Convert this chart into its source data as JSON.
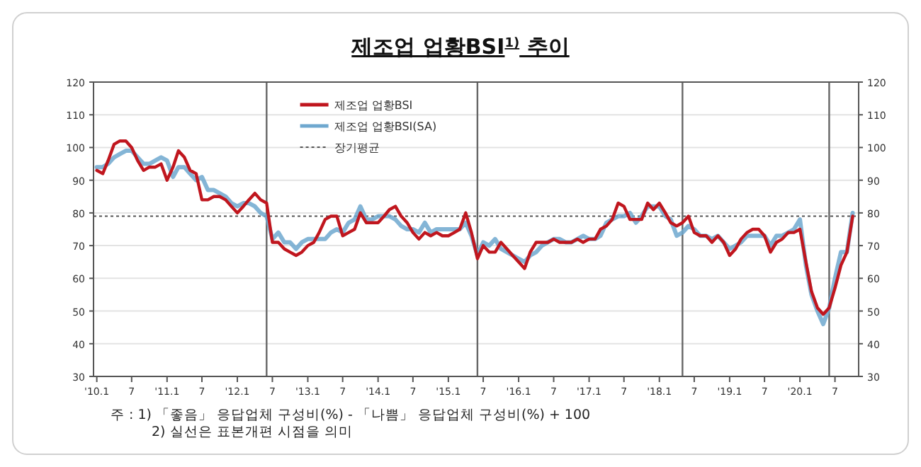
{
  "chart_data": {
    "type": "line",
    "title": "제조업 업황BSI$^{1)}$ 추이",
    "xlim": [
      "2009-12-15",
      "2020-11"
    ],
    "xticks": [
      {
        "value": "2010-01",
        "label": "'10.1"
      },
      {
        "value": "2010-07",
        "label": "7"
      },
      {
        "value": "2011-01",
        "label": "'11.1"
      },
      {
        "value": "2011-07",
        "label": "7"
      },
      {
        "value": "2012-01",
        "label": "'12.1"
      },
      {
        "value": "2012-07",
        "label": "7"
      },
      {
        "value": "2013-01",
        "label": "'13.1"
      },
      {
        "value": "2013-07",
        "label": "7"
      },
      {
        "value": "2014-01",
        "label": "'14.1"
      },
      {
        "value": "2014-07",
        "label": "7"
      },
      {
        "value": "2015-01",
        "label": "'15.1"
      },
      {
        "value": "2015-07",
        "label": "7"
      },
      {
        "value": "2016-01",
        "label": "'16.1"
      },
      {
        "value": "2016-07",
        "label": "7"
      },
      {
        "value": "2017-01",
        "label": "'17.1"
      },
      {
        "value": "2017-07",
        "label": "7"
      },
      {
        "value": "2018-01",
        "label": "'18.1"
      },
      {
        "value": "2018-07",
        "label": "7"
      },
      {
        "value": "2019-01",
        "label": "'19.1"
      },
      {
        "value": "2019-07",
        "label": "7"
      },
      {
        "value": "2020-01",
        "label": "'20.1"
      },
      {
        "value": "2020-07",
        "label": "7"
      }
    ],
    "ylim": [
      30,
      120
    ],
    "yticks": [
      30,
      40,
      50,
      60,
      70,
      80,
      90,
      100,
      110,
      120
    ],
    "y2lim": [
      30,
      120
    ],
    "y2ticks": [
      30,
      40,
      50,
      60,
      70,
      80,
      90,
      100,
      110,
      120
    ],
    "grid": "y",
    "legend": "top left",
    "line_style": "solid",
    "marker": "none",
    "series": [
      {
        "name": "제조업 업황BSI",
        "color": "#c0161e",
        "values": [
          93,
          92,
          96,
          101,
          102,
          102,
          100,
          96,
          93,
          94,
          94,
          95,
          90,
          94,
          99,
          97,
          93,
          92,
          84,
          84,
          85,
          85,
          84,
          82,
          80,
          82,
          84,
          86,
          84,
          83,
          71,
          71,
          69,
          68,
          67,
          68,
          70,
          71,
          74,
          78,
          79,
          79,
          73,
          74,
          75,
          80,
          77,
          77,
          77,
          79,
          81,
          82,
          79,
          77,
          74,
          72,
          74,
          73,
          74,
          73,
          73,
          74,
          75,
          80,
          74,
          66,
          70,
          68,
          68,
          71,
          69,
          67,
          65,
          63,
          68,
          71,
          71,
          71,
          72,
          71,
          71,
          71,
          72,
          71,
          72,
          72,
          75,
          76,
          78,
          83,
          82,
          78,
          78,
          78,
          83,
          81,
          83,
          80,
          77,
          76,
          77,
          79,
          74,
          73,
          73,
          71,
          73,
          71,
          67,
          69,
          72,
          74,
          75,
          75,
          73,
          68,
          71,
          72,
          74,
          74,
          75,
          65,
          56,
          51,
          49,
          51,
          57,
          64,
          68,
          79
        ]
      },
      {
        "name": "제조업 업황BSI(SA)",
        "color": "#6fa8cf",
        "values": [
          94,
          94,
          95,
          97,
          98,
          99,
          99,
          97,
          95,
          95,
          96,
          97,
          96,
          91,
          94,
          94,
          92,
          90,
          91,
          87,
          87,
          86,
          85,
          83,
          82,
          83,
          83,
          82,
          80,
          79,
          72,
          74,
          71,
          71,
          69,
          71,
          72,
          72,
          72,
          72,
          74,
          75,
          74,
          77,
          78,
          82,
          78,
          78,
          79,
          79,
          79,
          78,
          76,
          75,
          75,
          74,
          77,
          74,
          75,
          75,
          75,
          75,
          75,
          77,
          73,
          67,
          71,
          70,
          72,
          69,
          68,
          67,
          66,
          65,
          67,
          68,
          70,
          71,
          72,
          72,
          71,
          71,
          72,
          73,
          72,
          72,
          73,
          77,
          78,
          79,
          79,
          80,
          77,
          79,
          82,
          82,
          82,
          79,
          78,
          73,
          74,
          76,
          75,
          73,
          73,
          72,
          73,
          71,
          69,
          70,
          71,
          73,
          73,
          73,
          73,
          70,
          73,
          73,
          74,
          75,
          78,
          64,
          55,
          50,
          46,
          51,
          60,
          68,
          68,
          80
        ]
      }
    ],
    "x": [
      "2010-01",
      "2010-02",
      "2010-03",
      "2010-04",
      "2010-05",
      "2010-06",
      "2010-07",
      "2010-08",
      "2010-09",
      "2010-10",
      "2010-11",
      "2010-12",
      "2011-01",
      "2011-02",
      "2011-03",
      "2011-04",
      "2011-05",
      "2011-06",
      "2011-07",
      "2011-08",
      "2011-09",
      "2011-10",
      "2011-11",
      "2011-12",
      "2012-01",
      "2012-02",
      "2012-03",
      "2012-04",
      "2012-05",
      "2012-06",
      "2012-07",
      "2012-08",
      "2012-09",
      "2012-10",
      "2012-11",
      "2012-12",
      "2013-01",
      "2013-02",
      "2013-03",
      "2013-04",
      "2013-05",
      "2013-06",
      "2013-07",
      "2013-08",
      "2013-09",
      "2013-10",
      "2013-11",
      "2013-12",
      "2014-01",
      "2014-02",
      "2014-03",
      "2014-04",
      "2014-05",
      "2014-06",
      "2014-07",
      "2014-08",
      "2014-09",
      "2014-10",
      "2014-11",
      "2014-12",
      "2015-01",
      "2015-02",
      "2015-03",
      "2015-04",
      "2015-05",
      "2015-06",
      "2015-07",
      "2015-08",
      "2015-09",
      "2015-10",
      "2015-11",
      "2015-12",
      "2016-01",
      "2016-02",
      "2016-03",
      "2016-04",
      "2016-05",
      "2016-06",
      "2016-07",
      "2016-08",
      "2016-09",
      "2016-10",
      "2016-11",
      "2016-12",
      "2017-01",
      "2017-02",
      "2017-03",
      "2017-04",
      "2017-05",
      "2017-06",
      "2017-07",
      "2017-08",
      "2017-09",
      "2017-10",
      "2017-11",
      "2017-12",
      "2018-01",
      "2018-02",
      "2018-03",
      "2018-04",
      "2018-05",
      "2018-06",
      "2018-07",
      "2018-08",
      "2018-09",
      "2018-10",
      "2018-11",
      "2018-12",
      "2019-01",
      "2019-02",
      "2019-03",
      "2019-04",
      "2019-05",
      "2019-06",
      "2019-07",
      "2019-08",
      "2019-09",
      "2019-10",
      "2019-11",
      "2019-12",
      "2020-01",
      "2020-02",
      "2020-03",
      "2020-04",
      "2020-05",
      "2020-06",
      "2020-07",
      "2020-08",
      "2020-09",
      "2020-10"
    ],
    "ref_lines": [
      {
        "axis": "y",
        "value": 79,
        "label": "장기평균",
        "line_style": "dotted",
        "color": "#555555"
      },
      {
        "axis": "x",
        "value": "2012-06",
        "color": "#666666",
        "line_style": "solid"
      },
      {
        "axis": "x",
        "value": "2015-06",
        "color": "#666666",
        "line_style": "solid"
      },
      {
        "axis": "x",
        "value": "2018-05",
        "color": "#666666",
        "line_style": "solid"
      },
      {
        "axis": "x",
        "value": "2020-06",
        "color": "#666666",
        "line_style": "solid"
      }
    ],
    "annotations": [
      "주 : 1) 「좋음」 응답업체 구성비(%) - 「나쁨」 응답업체 구성비(%) + 100",
      "2) 실선은 표본개편 시점을 의미"
    ]
  }
}
